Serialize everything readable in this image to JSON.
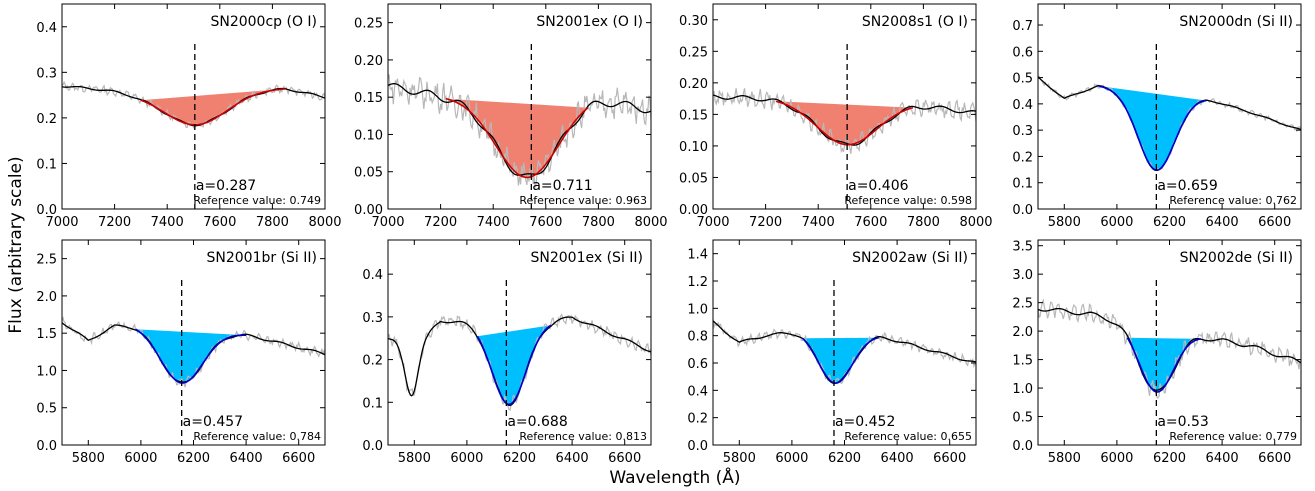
{
  "figure": {
    "xlabel": "Wavelength (Å)",
    "ylabel": "Flux (arbitrary scale)"
  },
  "colors": {
    "oi_fill": "#f08070",
    "oi_fit": "#cc0000",
    "si_fill": "#00bfff",
    "si_fit": "#0000cc",
    "smooth": "#000000",
    "raw": "#b8b8b8"
  },
  "chart_data": [
    {
      "type": "line",
      "title": "SN2000cp   (O I)",
      "feature": "O I",
      "xlim": [
        7000,
        8000
      ],
      "ylim": [
        0.0,
        0.45
      ],
      "xticks": [
        7000,
        7200,
        7400,
        7600,
        7800,
        8000
      ],
      "yticks": [
        0.0,
        0.1,
        0.2,
        0.3,
        0.4
      ],
      "ytick_labels": [
        "0.0",
        "0.1",
        "0.2",
        "0.3",
        "0.4"
      ],
      "continuum": [
        [
          7000,
          0.27
        ],
        [
          7300,
          0.255
        ],
        [
          7600,
          0.262
        ],
        [
          7850,
          0.265
        ],
        [
          8000,
          0.245
        ]
      ],
      "line_center": 7510,
      "line_depth": 0.075,
      "line_width": 120,
      "feature_range": [
        7300,
        7850
      ],
      "noise": 0.005,
      "ref_line_x": 7505,
      "annotation": "a=0.287",
      "reference": "Reference value: 0.749"
    },
    {
      "type": "line",
      "title": "SN2001ex   (O I)",
      "feature": "O I",
      "xlim": [
        7000,
        8000
      ],
      "ylim": [
        0.0,
        0.275
      ],
      "xticks": [
        7000,
        7200,
        7400,
        7600,
        7800,
        8000
      ],
      "yticks": [
        0.0,
        0.05,
        0.1,
        0.15,
        0.2,
        0.25
      ],
      "ytick_labels": [
        "0.00",
        "0.05",
        "0.10",
        "0.15",
        "0.20",
        "0.25"
      ],
      "continuum": [
        [
          7000,
          0.165
        ],
        [
          7200,
          0.152
        ],
        [
          7500,
          0.15
        ],
        [
          7760,
          0.153
        ],
        [
          8000,
          0.132
        ]
      ],
      "line_center": 7530,
      "line_depth": 0.108,
      "line_width": 120,
      "feature_range": [
        7220,
        7760
      ],
      "noise": 0.012,
      "ref_line_x": 7545,
      "annotation": "a=0.711",
      "reference": "Reference value: 0.963"
    },
    {
      "type": "line",
      "title": "SN2008s1   (O I)",
      "feature": "O I",
      "xlim": [
        7000,
        8000
      ],
      "ylim": [
        0.0,
        0.325
      ],
      "xticks": [
        7000,
        7200,
        7400,
        7600,
        7800,
        8000
      ],
      "yticks": [
        0.0,
        0.05,
        0.1,
        0.15,
        0.2,
        0.25,
        0.3
      ],
      "ytick_labels": [
        "0.00",
        "0.05",
        "0.10",
        "0.15",
        "0.20",
        "0.25",
        "0.30"
      ],
      "continuum": [
        [
          7000,
          0.178
        ],
        [
          7240,
          0.175
        ],
        [
          7500,
          0.17
        ],
        [
          7760,
          0.167
        ],
        [
          8000,
          0.152
        ]
      ],
      "line_center": 7510,
      "line_depth": 0.068,
      "line_width": 115,
      "feature_range": [
        7240,
        7760
      ],
      "noise": 0.008,
      "ref_line_x": 7510,
      "annotation": "a=0.406",
      "reference": "Reference value: 0.598"
    },
    {
      "type": "line",
      "title": "SN2000dn   (Si II)",
      "feature": "Si II",
      "xlim": [
        5700,
        6700
      ],
      "ylim": [
        0.0,
        0.78
      ],
      "xticks": [
        5800,
        6000,
        6200,
        6400,
        6600
      ],
      "yticks": [
        0.0,
        0.1,
        0.2,
        0.3,
        0.4,
        0.5,
        0.6,
        0.7
      ],
      "ytick_labels": [
        "0.0",
        "0.1",
        "0.2",
        "0.3",
        "0.4",
        "0.5",
        "0.6",
        "0.7"
      ],
      "continuum": [
        [
          5700,
          0.5
        ],
        [
          5800,
          0.42
        ],
        [
          5930,
          0.47
        ],
        [
          6340,
          0.42
        ],
        [
          6500,
          0.37
        ],
        [
          6700,
          0.3
        ]
      ],
      "line_center": 6150,
      "line_depth": 0.295,
      "line_width": 70,
      "feature_range": [
        5930,
        6340
      ],
      "noise": 0.006,
      "ref_line_x": 6150,
      "annotation": "a=0.659",
      "reference": "Reference value: 0.762"
    },
    {
      "type": "line",
      "title": "SN2001br   (Si II)",
      "feature": "Si II",
      "xlim": [
        5700,
        6700
      ],
      "ylim": [
        0.0,
        2.75
      ],
      "xticks": [
        5800,
        6000,
        6200,
        6400,
        6600
      ],
      "yticks": [
        0.0,
        0.5,
        1.0,
        1.5,
        2.0,
        2.5
      ],
      "ytick_labels": [
        "0.0",
        "0.5",
        "1.0",
        "1.5",
        "2.0",
        "2.5"
      ],
      "continuum": [
        [
          5700,
          1.65
        ],
        [
          5800,
          1.4
        ],
        [
          5900,
          1.6
        ],
        [
          5980,
          1.62
        ],
        [
          6400,
          1.48
        ],
        [
          6700,
          1.22
        ]
      ],
      "line_center": 6155,
      "line_depth": 0.73,
      "line_width": 80,
      "feature_range": [
        5980,
        6400
      ],
      "noise": 0.035,
      "ref_line_x": 6155,
      "annotation": "a=0.457",
      "reference": "Reference value: 0.784"
    },
    {
      "type": "line",
      "title": "SN2001ex   (Si II)",
      "feature": "Si II",
      "xlim": [
        5700,
        6700
      ],
      "ylim": [
        0.0,
        0.48
      ],
      "xticks": [
        5800,
        6000,
        6200,
        6400,
        6600
      ],
      "yticks": [
        0.0,
        0.1,
        0.2,
        0.3,
        0.4
      ],
      "ytick_labels": [
        "0.0",
        "0.1",
        "0.2",
        "0.3",
        "0.4"
      ],
      "continuum": [
        [
          5700,
          0.25
        ],
        [
          5750,
          0.24
        ],
        [
          5850,
          0.26
        ],
        [
          5900,
          0.29
        ],
        [
          6040,
          0.29
        ],
        [
          6320,
          0.29
        ],
        [
          6400,
          0.3
        ],
        [
          6700,
          0.22
        ]
      ],
      "extra_dips": [
        [
          5790,
          0.13,
          25
        ]
      ],
      "line_center": 6160,
      "line_depth": 0.195,
      "line_width": 65,
      "feature_range": [
        6040,
        6320
      ],
      "noise": 0.008,
      "ref_line_x": 6150,
      "annotation": "a=0.688",
      "reference": "Reference value: 0.813"
    },
    {
      "type": "line",
      "title": "SN2002aw   (Si II)",
      "feature": "Si II",
      "xlim": [
        5700,
        6700
      ],
      "ylim": [
        0.0,
        1.5
      ],
      "xticks": [
        5800,
        6000,
        6200,
        6400,
        6600
      ],
      "yticks": [
        0.0,
        0.2,
        0.4,
        0.6,
        0.8,
        1.0,
        1.2,
        1.4
      ],
      "ytick_labels": [
        "0.0",
        "0.2",
        "0.4",
        "0.6",
        "0.8",
        "1.0",
        "1.2",
        "1.4"
      ],
      "continuum": [
        [
          5700,
          0.9
        ],
        [
          5800,
          0.75
        ],
        [
          5900,
          0.8
        ],
        [
          6040,
          0.84
        ],
        [
          6330,
          0.8
        ],
        [
          6700,
          0.6
        ]
      ],
      "line_center": 6165,
      "line_depth": 0.37,
      "line_width": 65,
      "feature_range": [
        6040,
        6330
      ],
      "noise": 0.02,
      "ref_line_x": 6160,
      "annotation": "a=0.452",
      "reference": "Reference value: 0.655"
    },
    {
      "type": "line",
      "title": "SN2002de   (Si II)",
      "feature": "Si II",
      "xlim": [
        5700,
        6700
      ],
      "ylim": [
        0.0,
        3.6
      ],
      "xticks": [
        5800,
        6000,
        6200,
        6400,
        6600
      ],
      "yticks": [
        0.0,
        0.5,
        1.0,
        1.5,
        2.0,
        2.5,
        3.0,
        3.5
      ],
      "ytick_labels": [
        "0.0",
        "0.5",
        "1.0",
        "1.5",
        "2.0",
        "2.5",
        "3.0",
        "3.5"
      ],
      "continuum": [
        [
          5700,
          2.4
        ],
        [
          5900,
          2.3
        ],
        [
          6040,
          2.15
        ],
        [
          6320,
          1.9
        ],
        [
          6500,
          1.75
        ],
        [
          6700,
          1.45
        ]
      ],
      "line_center": 6150,
      "line_depth": 1.12,
      "line_width": 65,
      "feature_range": [
        6040,
        6320
      ],
      "noise": 0.09,
      "ref_line_x": 6150,
      "annotation": "a=0.53",
      "reference": "Reference value: 0.779"
    }
  ]
}
